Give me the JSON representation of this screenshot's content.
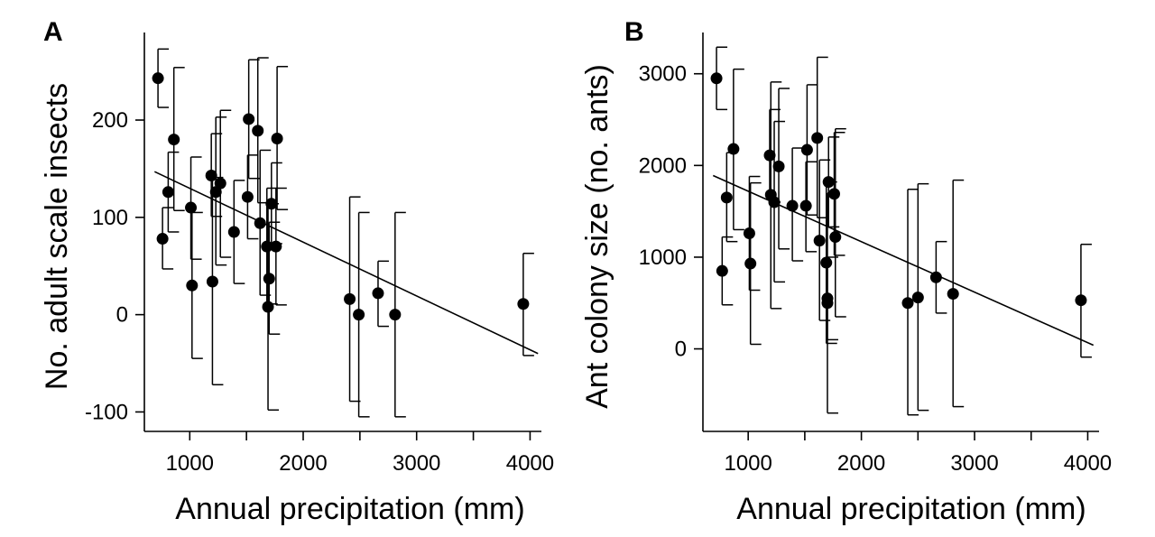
{
  "chart_data": [
    {
      "panel": "A",
      "type": "scatter",
      "title": "",
      "xlabel": "Annual precipitation (mm)",
      "ylabel": "No. adult scale insects",
      "xlim": [
        600,
        4100
      ],
      "ylim": [
        -120,
        290
      ],
      "xticks": [
        1000,
        1500,
        2000,
        2500,
        3000,
        3500,
        4000
      ],
      "xtick_labels": [
        "1000",
        "",
        "2000",
        "",
        "3000",
        "",
        "4000"
      ],
      "yticks": [
        -100,
        0,
        100,
        200
      ],
      "ytick_labels": [
        "-100",
        "0",
        "100",
        "200"
      ],
      "error_bar_style": "vertical bars with cap",
      "grid": false,
      "legend": "none",
      "points": [
        {
          "x": 720,
          "y": 243,
          "lo": 213,
          "hi": 273
        },
        {
          "x": 760,
          "y": 78,
          "lo": 47,
          "hi": 110
        },
        {
          "x": 810,
          "y": 126,
          "lo": 85,
          "hi": 167
        },
        {
          "x": 860,
          "y": 180,
          "lo": 107,
          "hi": 254
        },
        {
          "x": 1010,
          "y": 110,
          "lo": 57,
          "hi": 162
        },
        {
          "x": 1020,
          "y": 30,
          "lo": -45,
          "hi": 105
        },
        {
          "x": 1190,
          "y": 143,
          "lo": 101,
          "hi": 186
        },
        {
          "x": 1200,
          "y": 34,
          "lo": -72,
          "hi": 141
        },
        {
          "x": 1230,
          "y": 126,
          "lo": 51,
          "hi": 203
        },
        {
          "x": 1270,
          "y": 135,
          "lo": 59,
          "hi": 210
        },
        {
          "x": 1390,
          "y": 85,
          "lo": 32,
          "hi": 138
        },
        {
          "x": 1510,
          "y": 121,
          "lo": 78,
          "hi": 164
        },
        {
          "x": 1520,
          "y": 201,
          "lo": 140,
          "hi": 262
        },
        {
          "x": 1600,
          "y": 189,
          "lo": 115,
          "hi": 264
        },
        {
          "x": 1620,
          "y": 94,
          "lo": 20,
          "hi": 169
        },
        {
          "x": 1680,
          "y": 70,
          "lo": 11,
          "hi": 130
        },
        {
          "x": 1690,
          "y": 8,
          "lo": -98,
          "hi": 114
        },
        {
          "x": 1700,
          "y": 37,
          "lo": -20,
          "hi": 95
        },
        {
          "x": 1720,
          "y": 114,
          "lo": 73,
          "hi": 156
        },
        {
          "x": 1760,
          "y": 70,
          "lo": 10,
          "hi": 130
        },
        {
          "x": 1770,
          "y": 181,
          "lo": 108,
          "hi": 255
        },
        {
          "x": 2410,
          "y": 16,
          "lo": -89,
          "hi": 121
        },
        {
          "x": 2490,
          "y": 0,
          "lo": -105,
          "hi": 105
        },
        {
          "x": 2660,
          "y": 22,
          "lo": -12,
          "hi": 55
        },
        {
          "x": 2810,
          "y": 0,
          "lo": -105,
          "hi": 105
        },
        {
          "x": 3940,
          "y": 11,
          "lo": -42,
          "hi": 63
        }
      ],
      "fit_line": {
        "x": [
          690,
          4070
        ],
        "y": [
          147,
          -40
        ]
      }
    },
    {
      "panel": "B",
      "type": "scatter",
      "title": "",
      "xlabel": "Annual precipitation (mm)",
      "ylabel": "Ant colony size (no. ants)",
      "xlim": [
        600,
        4100
      ],
      "ylim": [
        -900,
        3450
      ],
      "xticks": [
        1000,
        1500,
        2000,
        2500,
        3000,
        3500,
        4000
      ],
      "xtick_labels": [
        "1000",
        "",
        "2000",
        "",
        "3000",
        "",
        "4000"
      ],
      "yticks": [
        0,
        1000,
        2000,
        3000
      ],
      "ytick_labels": [
        "0",
        "1000",
        "2000",
        "3000"
      ],
      "error_bar_style": "vertical bars with cap",
      "grid": false,
      "legend": "none",
      "points": [
        {
          "x": 720,
          "y": 2950,
          "lo": 2610,
          "hi": 3290
        },
        {
          "x": 770,
          "y": 850,
          "lo": 480,
          "hi": 1220
        },
        {
          "x": 810,
          "y": 1650,
          "lo": 1170,
          "hi": 2140
        },
        {
          "x": 870,
          "y": 2180,
          "lo": 1300,
          "hi": 3050
        },
        {
          "x": 1010,
          "y": 1260,
          "lo": 640,
          "hi": 1880
        },
        {
          "x": 1020,
          "y": 930,
          "lo": 50,
          "hi": 1810
        },
        {
          "x": 1190,
          "y": 2110,
          "lo": 1600,
          "hi": 2610
        },
        {
          "x": 1200,
          "y": 1680,
          "lo": 440,
          "hi": 2910
        },
        {
          "x": 1230,
          "y": 1600,
          "lo": 730,
          "hi": 2480
        },
        {
          "x": 1270,
          "y": 1990,
          "lo": 1090,
          "hi": 2840
        },
        {
          "x": 1390,
          "y": 1560,
          "lo": 960,
          "hi": 2190
        },
        {
          "x": 1510,
          "y": 1560,
          "lo": 1060,
          "hi": 2040
        },
        {
          "x": 1520,
          "y": 2170,
          "lo": 1460,
          "hi": 2880
        },
        {
          "x": 1610,
          "y": 2300,
          "lo": 1430,
          "hi": 3180
        },
        {
          "x": 1630,
          "y": 1180,
          "lo": 310,
          "hi": 2060
        },
        {
          "x": 1690,
          "y": 940,
          "lo": 60,
          "hi": 1820
        },
        {
          "x": 1700,
          "y": 500,
          "lo": -700,
          "hi": 1700
        },
        {
          "x": 1700,
          "y": 550,
          "lo": 100,
          "hi": 1000
        },
        {
          "x": 1710,
          "y": 1820,
          "lo": 1330,
          "hi": 2310
        },
        {
          "x": 1760,
          "y": 1690,
          "lo": 1020,
          "hi": 2360
        },
        {
          "x": 1770,
          "y": 1220,
          "lo": 350,
          "hi": 2400
        },
        {
          "x": 2410,
          "y": 500,
          "lo": -720,
          "hi": 1740
        },
        {
          "x": 2500,
          "y": 560,
          "lo": -670,
          "hi": 1800
        },
        {
          "x": 2660,
          "y": 780,
          "lo": 390,
          "hi": 1170
        },
        {
          "x": 2810,
          "y": 600,
          "lo": -630,
          "hi": 1840
        },
        {
          "x": 3940,
          "y": 530,
          "lo": -90,
          "hi": 1140
        }
      ],
      "fit_line": {
        "x": [
          690,
          4050
        ],
        "y": [
          1890,
          40
        ]
      }
    }
  ]
}
